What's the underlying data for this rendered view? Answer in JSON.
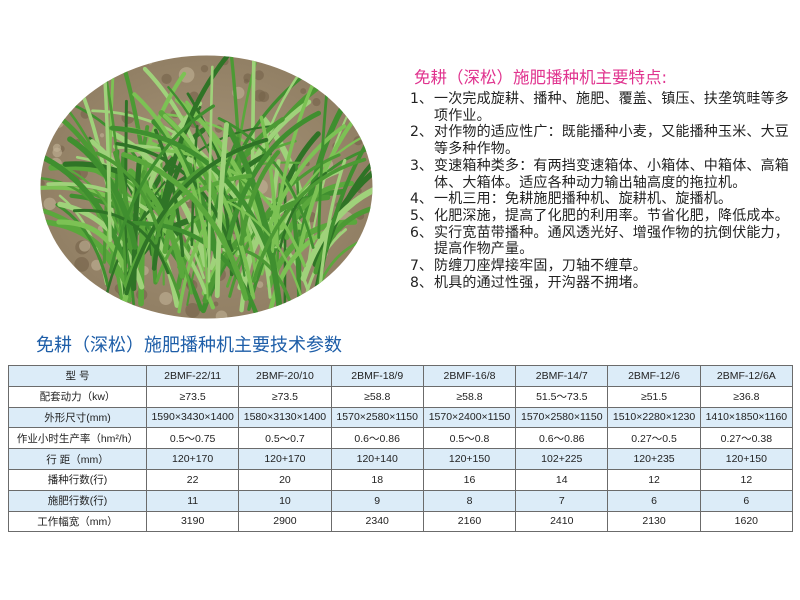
{
  "features": {
    "title": "免耕（深松）施肥播种机主要特点:",
    "items": [
      {
        "num": "1、",
        "text": "一次完成旋耕、播种、施肥、覆盖、镇压、扶垄筑畦等多项作业。"
      },
      {
        "num": "2、",
        "text": "对作物的适应性广：既能播种小麦，又能播种玉米、大豆等多种作物。"
      },
      {
        "num": "3、",
        "text": "变速箱种类多：有两挡变速箱体、小箱体、中箱体、高箱体、大箱体。适应各种动力输出轴高度的拖拉机。"
      },
      {
        "num": "4、",
        "text": "一机三用：免耕施肥播种机、旋耕机、旋播机。"
      },
      {
        "num": "5、",
        "text": "化肥深施，提高了化肥的利用率。节省化肥，降低成本。"
      },
      {
        "num": "6、",
        "text": "实行宽苗带播种。通风透光好、增强作物的抗倒伏能力，提高作物产量。"
      },
      {
        "num": "7、",
        "text": "防缠刀座焊接牢固，刀轴不缠草。"
      },
      {
        "num": "8、",
        "text": "机具的通过性强，开沟器不拥堵。"
      }
    ]
  },
  "spec_table": {
    "title": "免耕（深松）施肥播种机主要技术参数",
    "rows": [
      {
        "label": "型 号",
        "values": [
          "2BMF-22/11",
          "2BMF-20/10",
          "2BMF-18/9",
          "2BMF-16/8",
          "2BMF-14/7",
          "2BMF-12/6",
          "2BMF-12/6A"
        ]
      },
      {
        "label": "配套动力（kw）",
        "values": [
          "≥73.5",
          "≥73.5",
          "≥58.8",
          "≥58.8",
          "51.5～73.5",
          "≥51.5",
          "≥36.8"
        ]
      },
      {
        "label": "外形尺寸(mm)",
        "values": [
          "1590×3430×1400",
          "1580×3130×1400",
          "1570×2580×1150",
          "1570×2400×1150",
          "1570×2580×1150",
          "1510×2280×1230",
          "1410×1850×1160"
        ]
      },
      {
        "label": "作业小时生产率（hm²/h）",
        "values": [
          "0.5～0.75",
          "0.5～0.7",
          "0.6～0.86",
          "0.5～0.8",
          "0.6～0.86",
          "0.27～0.5",
          "0.27～0.38"
        ]
      },
      {
        "label": "行 距（mm）",
        "values": [
          "120+170",
          "120+170",
          "120+140",
          "120+150",
          "102+225",
          "120+235",
          "120+150"
        ]
      },
      {
        "label": "播种行数(行)",
        "values": [
          "22",
          "20",
          "18",
          "16",
          "14",
          "12",
          "12"
        ]
      },
      {
        "label": "施肥行数(行)",
        "values": [
          "11",
          "10",
          "9",
          "8",
          "7",
          "6",
          "6"
        ]
      },
      {
        "label": "工作幅宽（mm）",
        "values": [
          "3190",
          "2900",
          "2340",
          "2160",
          "2410",
          "2130",
          "1620"
        ]
      }
    ]
  },
  "colors": {
    "feature_title": "#e0348f",
    "table_title": "#1e5ea8",
    "row_highlight": "#dcecf8"
  }
}
